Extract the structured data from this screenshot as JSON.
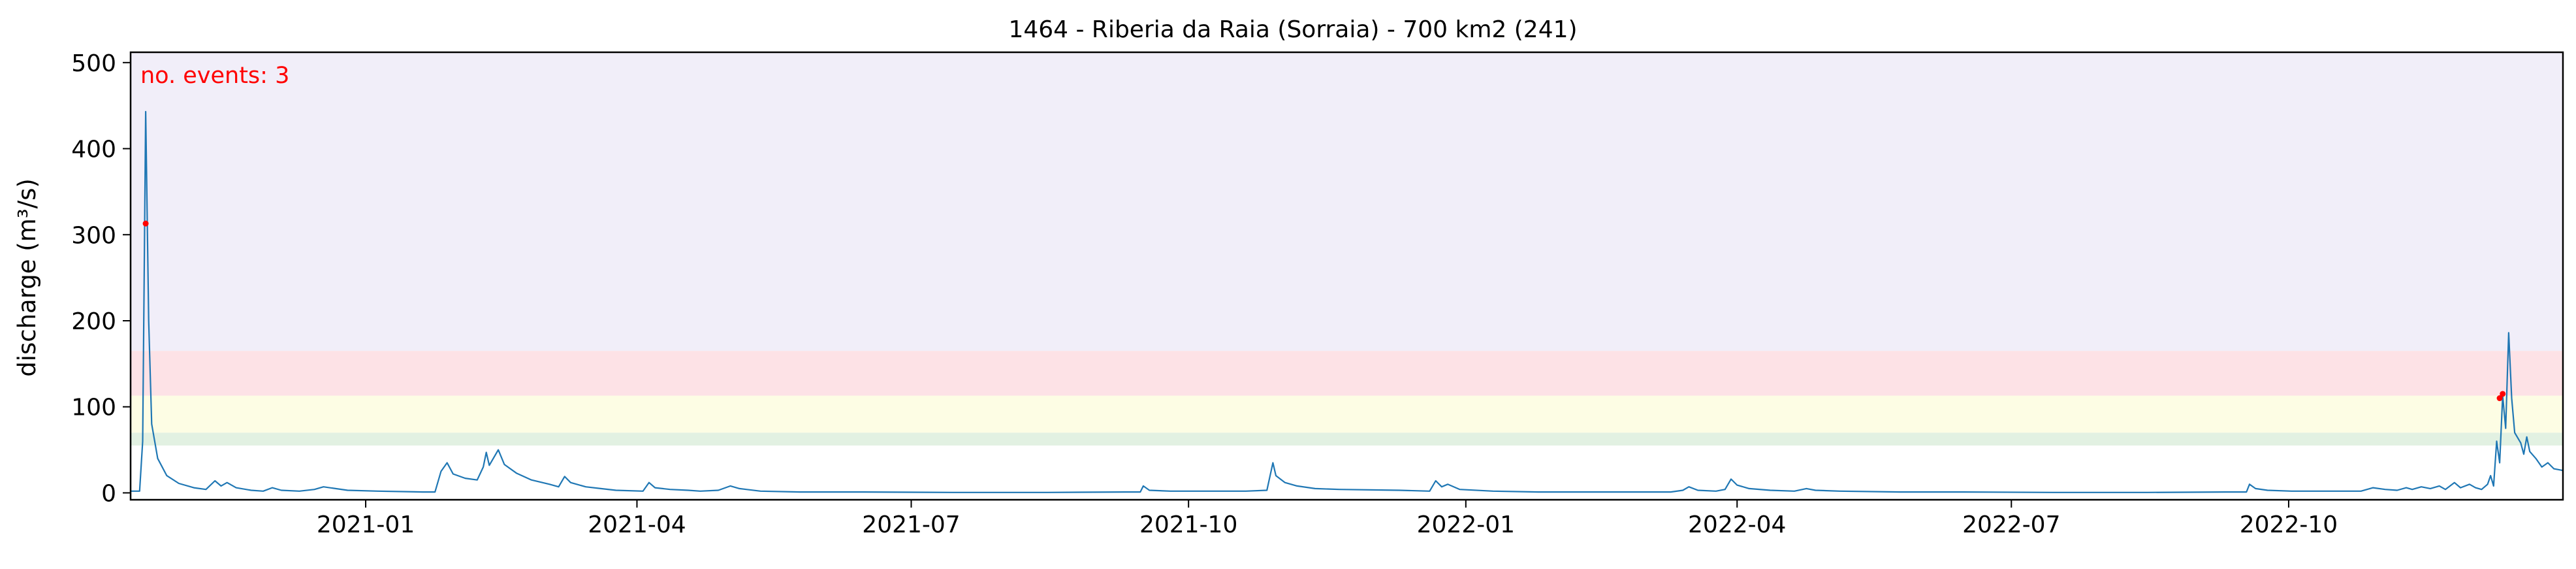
{
  "chart_data": {
    "type": "line",
    "title": "1464 - Riberia da Raia (Sorraia) - 700 km2 (241)",
    "xlabel": "",
    "ylabel": "discharge (m³/s)",
    "annotation": "no. events: 3",
    "xlim": [
      "2020-10-15",
      "2022-12-31"
    ],
    "ylim": [
      -8,
      512
    ],
    "x_ticks": [
      "2021-01-01",
      "2021-04-01",
      "2021-07-01",
      "2021-10-01",
      "2022-01-01",
      "2022-04-01",
      "2022-07-01",
      "2022-10-01"
    ],
    "x_tick_labels": [
      "2021-01",
      "2021-04",
      "2021-07",
      "2021-10",
      "2022-01",
      "2022-04",
      "2022-07",
      "2022-10"
    ],
    "y_ticks": [
      0,
      100,
      200,
      300,
      400,
      500
    ],
    "y_tick_labels": [
      "0",
      "100",
      "200",
      "300",
      "400",
      "500"
    ],
    "threshold_bands": [
      {
        "from": 55,
        "to": 70,
        "color": "#e2f1e2"
      },
      {
        "from": 70,
        "to": 113,
        "color": "#fdfde4"
      },
      {
        "from": 113,
        "to": 165,
        "color": "#fde2e6"
      },
      {
        "from": 165,
        "to": 512,
        "color": "#f1eef9"
      }
    ],
    "series": [
      {
        "color": "#1f77b4",
        "points": [
          [
            "2020-10-15",
            2
          ],
          [
            "2020-10-18",
            2
          ],
          [
            "2020-10-19",
            60
          ],
          [
            "2020-10-20",
            443
          ],
          [
            "2020-10-21",
            200
          ],
          [
            "2020-10-22",
            80
          ],
          [
            "2020-10-24",
            40
          ],
          [
            "2020-10-27",
            20
          ],
          [
            "2020-10-31",
            11
          ],
          [
            "2020-11-05",
            6
          ],
          [
            "2020-11-09",
            4
          ],
          [
            "2020-11-12",
            14
          ],
          [
            "2020-11-14",
            8
          ],
          [
            "2020-11-16",
            12
          ],
          [
            "2020-11-19",
            6
          ],
          [
            "2020-11-24",
            3
          ],
          [
            "2020-11-28",
            2
          ],
          [
            "2020-12-01",
            6
          ],
          [
            "2020-12-04",
            3
          ],
          [
            "2020-12-10",
            2
          ],
          [
            "2020-12-15",
            4
          ],
          [
            "2020-12-18",
            7
          ],
          [
            "2020-12-22",
            5
          ],
          [
            "2020-12-26",
            3
          ],
          [
            "2021-01-05",
            2
          ],
          [
            "2021-01-20",
            1
          ],
          [
            "2021-01-24",
            1
          ],
          [
            "2021-01-26",
            25
          ],
          [
            "2021-01-28",
            35
          ],
          [
            "2021-01-30",
            22
          ],
          [
            "2021-02-03",
            17
          ],
          [
            "2021-02-07",
            15
          ],
          [
            "2021-02-09",
            30
          ],
          [
            "2021-02-10",
            47
          ],
          [
            "2021-02-11",
            32
          ],
          [
            "2021-02-12",
            38
          ],
          [
            "2021-02-14",
            50
          ],
          [
            "2021-02-16",
            33
          ],
          [
            "2021-02-20",
            23
          ],
          [
            "2021-02-25",
            15
          ],
          [
            "2021-03-03",
            10
          ],
          [
            "2021-03-06",
            7
          ],
          [
            "2021-03-08",
            19
          ],
          [
            "2021-03-10",
            12
          ],
          [
            "2021-03-15",
            7
          ],
          [
            "2021-03-20",
            5
          ],
          [
            "2021-03-25",
            3
          ],
          [
            "2021-04-03",
            2
          ],
          [
            "2021-04-05",
            12
          ],
          [
            "2021-04-07",
            6
          ],
          [
            "2021-04-12",
            4
          ],
          [
            "2021-04-18",
            3
          ],
          [
            "2021-04-22",
            2
          ],
          [
            "2021-04-28",
            3
          ],
          [
            "2021-05-02",
            8
          ],
          [
            "2021-05-05",
            5
          ],
          [
            "2021-05-12",
            2
          ],
          [
            "2021-05-25",
            1
          ],
          [
            "2021-06-15",
            1
          ],
          [
            "2021-07-15",
            0.5
          ],
          [
            "2021-08-15",
            0.5
          ],
          [
            "2021-09-10",
            1
          ],
          [
            "2021-09-15",
            1
          ],
          [
            "2021-09-16",
            8
          ],
          [
            "2021-09-18",
            3
          ],
          [
            "2021-09-25",
            2
          ],
          [
            "2021-10-20",
            2
          ],
          [
            "2021-10-27",
            3
          ],
          [
            "2021-10-29",
            35
          ],
          [
            "2021-10-30",
            20
          ],
          [
            "2021-11-02",
            12
          ],
          [
            "2021-11-06",
            8
          ],
          [
            "2021-11-12",
            5
          ],
          [
            "2021-11-20",
            4
          ],
          [
            "2021-12-10",
            3
          ],
          [
            "2021-12-20",
            2
          ],
          [
            "2021-12-22",
            14
          ],
          [
            "2021-12-24",
            7
          ],
          [
            "2021-12-26",
            10
          ],
          [
            "2021-12-30",
            4
          ],
          [
            "2022-01-10",
            2
          ],
          [
            "2022-01-25",
            1
          ],
          [
            "2022-02-15",
            1
          ],
          [
            "2022-03-10",
            1
          ],
          [
            "2022-03-14",
            3
          ],
          [
            "2022-03-16",
            7
          ],
          [
            "2022-03-19",
            3
          ],
          [
            "2022-03-25",
            2
          ],
          [
            "2022-03-28",
            4
          ],
          [
            "2022-03-30",
            16
          ],
          [
            "2022-04-01",
            9
          ],
          [
            "2022-04-05",
            5
          ],
          [
            "2022-04-12",
            3
          ],
          [
            "2022-04-20",
            2
          ],
          [
            "2022-04-24",
            5
          ],
          [
            "2022-04-27",
            3
          ],
          [
            "2022-05-05",
            2
          ],
          [
            "2022-05-25",
            1
          ],
          [
            "2022-06-15",
            1
          ],
          [
            "2022-07-15",
            0.5
          ],
          [
            "2022-08-15",
            0.5
          ],
          [
            "2022-09-10",
            1
          ],
          [
            "2022-09-17",
            1
          ],
          [
            "2022-09-18",
            10
          ],
          [
            "2022-09-20",
            5
          ],
          [
            "2022-09-24",
            3
          ],
          [
            "2022-10-02",
            2
          ],
          [
            "2022-10-25",
            2
          ],
          [
            "2022-10-29",
            6
          ],
          [
            "2022-11-02",
            4
          ],
          [
            "2022-11-06",
            3
          ],
          [
            "2022-11-09",
            6
          ],
          [
            "2022-11-11",
            4
          ],
          [
            "2022-11-14",
            7
          ],
          [
            "2022-11-17",
            5
          ],
          [
            "2022-11-20",
            8
          ],
          [
            "2022-11-22",
            4
          ],
          [
            "2022-11-25",
            12
          ],
          [
            "2022-11-27",
            6
          ],
          [
            "2022-11-30",
            10
          ],
          [
            "2022-12-02",
            6
          ],
          [
            "2022-12-04",
            4
          ],
          [
            "2022-12-06",
            10
          ],
          [
            "2022-12-07",
            20
          ],
          [
            "2022-12-08",
            8
          ],
          [
            "2022-12-09",
            60
          ],
          [
            "2022-12-10",
            35
          ],
          [
            "2022-12-11",
            113
          ],
          [
            "2022-12-12",
            75
          ],
          [
            "2022-12-13",
            186
          ],
          [
            "2022-12-14",
            110
          ],
          [
            "2022-12-15",
            70
          ],
          [
            "2022-12-17",
            58
          ],
          [
            "2022-12-18",
            45
          ],
          [
            "2022-12-19",
            65
          ],
          [
            "2022-12-20",
            48
          ],
          [
            "2022-12-22",
            40
          ],
          [
            "2022-12-24",
            30
          ],
          [
            "2022-12-26",
            35
          ],
          [
            "2022-12-28",
            28
          ],
          [
            "2022-12-31",
            26
          ]
        ]
      }
    ],
    "events": [
      {
        "x": "2020-10-20",
        "y": 313,
        "color": "#ff0000"
      },
      {
        "x": "2022-12-10",
        "y": 110,
        "color": "#ff0000"
      },
      {
        "x": "2022-12-11",
        "y": 115,
        "color": "#ff0000"
      }
    ],
    "grid": false,
    "legend": "none"
  }
}
